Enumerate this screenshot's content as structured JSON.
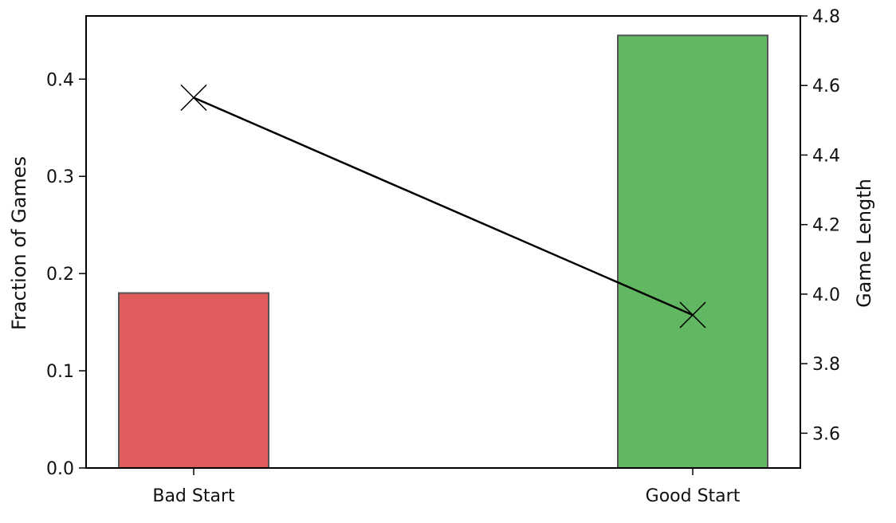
{
  "chart_data": {
    "type": "bar",
    "categories": [
      "Bad Start",
      "Good Start"
    ],
    "bars": {
      "values": [
        0.18,
        0.445
      ],
      "colors": [
        "#e05c5c",
        "#62b862"
      ],
      "edge_color": "#555555",
      "axis": "left"
    },
    "line": {
      "values": [
        4.565,
        3.94
      ],
      "color": "#000000",
      "marker": "x",
      "axis": "right"
    },
    "xlabel": "",
    "ylabel_left": "Fraction of Games",
    "ylabel_right": "Game Length",
    "ylim_left": [
      0,
      0.465
    ],
    "ylim_right": [
      3.5,
      4.8
    ],
    "yticks_left": [
      "0.0",
      "0.1",
      "0.2",
      "0.3",
      "0.4"
    ],
    "yticks_right": [
      "3.6",
      "3.8",
      "4.0",
      "4.2",
      "4.4",
      "4.6",
      "4.8"
    ],
    "grid": false,
    "legend": "none"
  }
}
